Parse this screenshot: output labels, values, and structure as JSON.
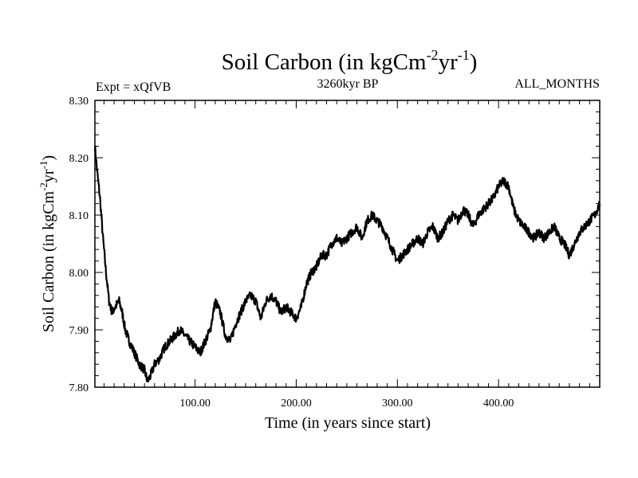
{
  "chart_data": {
    "type": "line",
    "title": "Soil Carbon (in kgCm",
    "title_exp1": "-2",
    "title_mid": "yr",
    "title_exp2": "-1",
    "title_end": ")",
    "subtitle_left": "Expt = xQfVB",
    "subtitle_center": "3260kyr BP",
    "subtitle_right": "ALL_MONTHS",
    "xlabel": "Time (in years since start)",
    "ylabel_base": "Soil Carbon (in kgCm",
    "ylabel_exp1": "-2",
    "ylabel_mid": "yr",
    "ylabel_exp2": "-1",
    "ylabel_end": ")",
    "xlim": [
      1,
      500
    ],
    "ylim": [
      7.8,
      8.3
    ],
    "xticks": [
      100,
      200,
      300,
      400
    ],
    "xtick_labels": [
      "100.00",
      "200.00",
      "300.00",
      "400.00"
    ],
    "yticks": [
      7.8,
      7.9,
      8.0,
      8.1,
      8.2,
      8.3
    ],
    "ytick_labels": [
      "7.80",
      "7.90",
      "8.00",
      "8.10",
      "8.20",
      "8.30"
    ],
    "series": [
      {
        "name": "Soil Carbon",
        "color": "#000000",
        "x": [
          1,
          3,
          6,
          9,
          12,
          15,
          18,
          21,
          25,
          28,
          31,
          35,
          40,
          45,
          50,
          53,
          56,
          60,
          65,
          70,
          75,
          80,
          85,
          90,
          95,
          100,
          105,
          110,
          115,
          120,
          125,
          130,
          135,
          140,
          145,
          150,
          155,
          160,
          165,
          170,
          175,
          180,
          185,
          190,
          195,
          200,
          205,
          210,
          215,
          220,
          225,
          230,
          235,
          240,
          245,
          250,
          255,
          260,
          265,
          270,
          275,
          280,
          285,
          290,
          295,
          300,
          305,
          310,
          315,
          320,
          325,
          330,
          335,
          340,
          345,
          350,
          355,
          360,
          365,
          370,
          375,
          380,
          385,
          390,
          395,
          400,
          405,
          410,
          415,
          420,
          425,
          430,
          435,
          440,
          445,
          450,
          455,
          460,
          465,
          470,
          475,
          480,
          485,
          490,
          495,
          500
        ],
        "y": [
          8.22,
          8.18,
          8.13,
          8.06,
          8.0,
          7.95,
          7.93,
          7.94,
          7.95,
          7.93,
          7.9,
          7.88,
          7.86,
          7.84,
          7.83,
          7.81,
          7.82,
          7.84,
          7.85,
          7.87,
          7.88,
          7.89,
          7.9,
          7.89,
          7.88,
          7.87,
          7.86,
          7.88,
          7.9,
          7.95,
          7.93,
          7.89,
          7.88,
          7.91,
          7.93,
          7.95,
          7.96,
          7.95,
          7.92,
          7.95,
          7.96,
          7.95,
          7.93,
          7.94,
          7.93,
          7.92,
          7.94,
          7.98,
          8.0,
          8.01,
          8.03,
          8.03,
          8.05,
          8.06,
          8.05,
          8.06,
          8.07,
          8.08,
          8.06,
          8.09,
          8.1,
          8.09,
          8.08,
          8.06,
          8.04,
          8.02,
          8.03,
          8.04,
          8.05,
          8.06,
          8.05,
          8.07,
          8.08,
          8.06,
          8.07,
          8.09,
          8.1,
          8.09,
          8.11,
          8.1,
          8.08,
          8.1,
          8.11,
          8.12,
          8.13,
          8.15,
          8.16,
          8.15,
          8.11,
          8.09,
          8.08,
          8.07,
          8.06,
          8.07,
          8.06,
          8.07,
          8.08,
          8.06,
          8.05,
          8.03,
          8.05,
          8.07,
          8.08,
          8.09,
          8.1,
          8.12
        ]
      }
    ]
  }
}
